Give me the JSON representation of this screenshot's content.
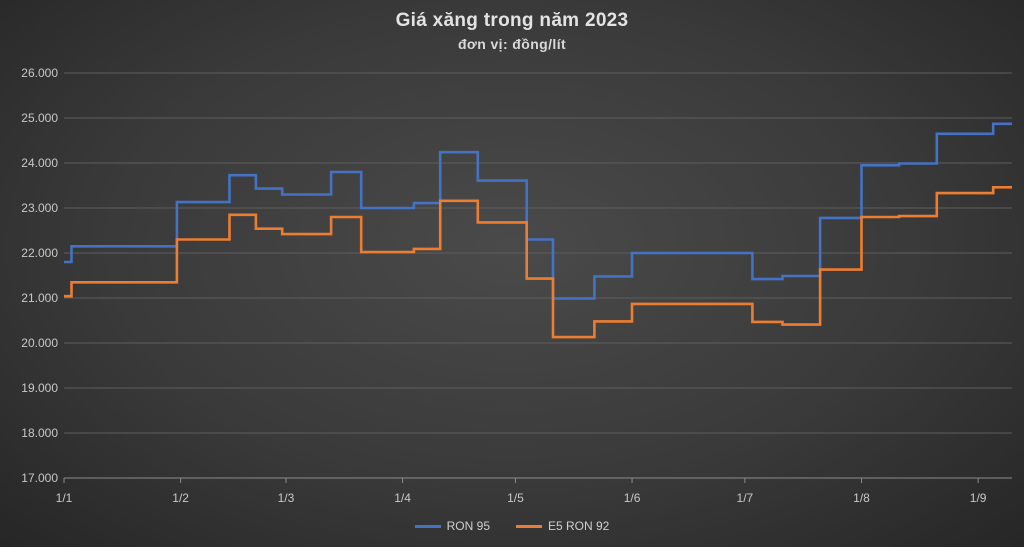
{
  "chart_data": {
    "type": "line",
    "step": true,
    "title": "Giá xăng trong năm 2023",
    "subtitle": "đơn vị: đồng/lít",
    "xlabel": "",
    "ylabel": "",
    "x_ticks": [
      "1/1",
      "1/2",
      "1/3",
      "1/4",
      "1/5",
      "1/6",
      "1/7",
      "1/8",
      "1/9"
    ],
    "x_range": [
      "2023-01-01",
      "2023-09-10"
    ],
    "ylim": [
      17000,
      26000
    ],
    "y_ticks": [
      "17.000",
      "18.000",
      "19.000",
      "20.000",
      "21.000",
      "22.000",
      "23.000",
      "24.000",
      "25.000",
      "26.000"
    ],
    "grid": true,
    "legend_position": "bottom",
    "series": [
      {
        "name": "RON 95",
        "color": "#4472c4",
        "points": [
          [
            "2023-01-01",
            21800
          ],
          [
            "2023-01-03",
            22150
          ],
          [
            "2023-01-31",
            23130
          ],
          [
            "2023-02-14",
            23730
          ],
          [
            "2023-02-21",
            23430
          ],
          [
            "2023-02-28",
            23300
          ],
          [
            "2023-03-13",
            23800
          ],
          [
            "2023-03-21",
            23000
          ],
          [
            "2023-04-04",
            23110
          ],
          [
            "2023-04-11",
            24240
          ],
          [
            "2023-04-21",
            23610
          ],
          [
            "2023-05-04",
            22300
          ],
          [
            "2023-05-11",
            20990
          ],
          [
            "2023-05-22",
            21480
          ],
          [
            "2023-06-01",
            22000
          ],
          [
            "2023-07-03",
            21420
          ],
          [
            "2023-07-11",
            21490
          ],
          [
            "2023-07-21",
            22780
          ],
          [
            "2023-08-01",
            23950
          ],
          [
            "2023-08-11",
            23990
          ],
          [
            "2023-08-21",
            24650
          ],
          [
            "2023-09-05",
            24870
          ],
          [
            "2023-09-10",
            24870
          ]
        ]
      },
      {
        "name": "E5 RON 92",
        "color": "#ed7d31",
        "points": [
          [
            "2023-01-01",
            21040
          ],
          [
            "2023-01-03",
            21350
          ],
          [
            "2023-01-31",
            22300
          ],
          [
            "2023-02-14",
            22850
          ],
          [
            "2023-02-21",
            22540
          ],
          [
            "2023-02-28",
            22420
          ],
          [
            "2023-03-13",
            22800
          ],
          [
            "2023-03-21",
            22020
          ],
          [
            "2023-04-04",
            22090
          ],
          [
            "2023-04-11",
            23160
          ],
          [
            "2023-04-21",
            22680
          ],
          [
            "2023-05-04",
            21430
          ],
          [
            "2023-05-11",
            20130
          ],
          [
            "2023-05-22",
            20480
          ],
          [
            "2023-06-01",
            20870
          ],
          [
            "2023-07-03",
            20470
          ],
          [
            "2023-07-11",
            20410
          ],
          [
            "2023-07-21",
            21630
          ],
          [
            "2023-08-01",
            22800
          ],
          [
            "2023-08-11",
            22820
          ],
          [
            "2023-08-21",
            23330
          ],
          [
            "2023-09-05",
            23460
          ],
          [
            "2023-09-10",
            23460
          ]
        ]
      }
    ]
  }
}
